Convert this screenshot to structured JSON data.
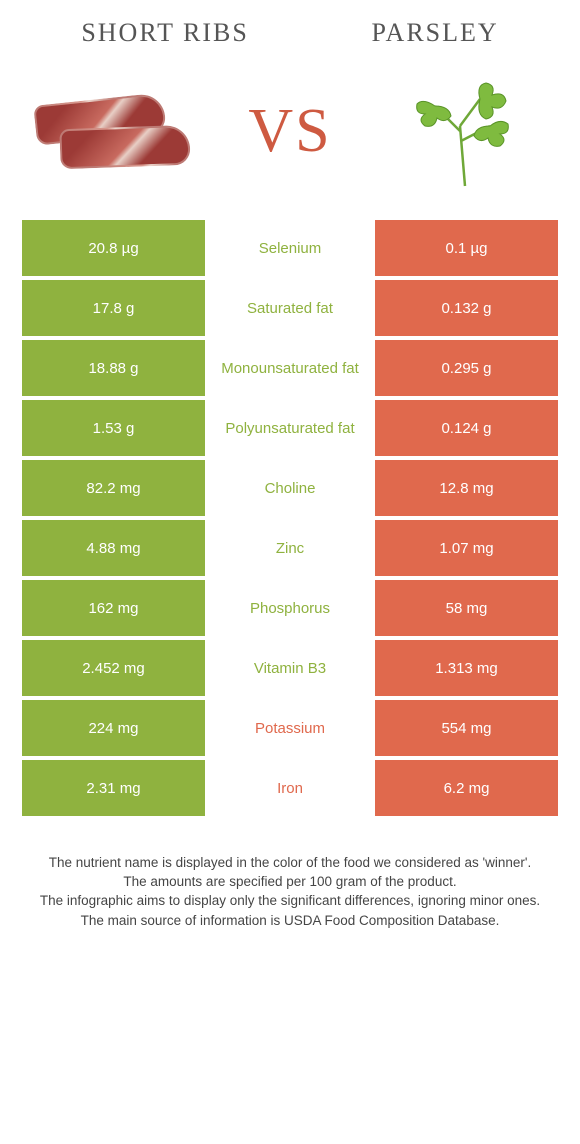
{
  "left_title": "Short ribs",
  "right_title": "Parsley",
  "vs_label": "VS",
  "colors": {
    "green": "#8fb23f",
    "orange": "#e0694d",
    "green_text": "#8fb23f",
    "orange_text": "#e0694d"
  },
  "table": {
    "left_bg": "#8fb23f",
    "right_bg": "#e0694d",
    "rows": [
      {
        "left": "20.8 µg",
        "nutrient": "Selenium",
        "right": "0.1 µg",
        "winner": "left"
      },
      {
        "left": "17.8 g",
        "nutrient": "Saturated fat",
        "right": "0.132 g",
        "winner": "left"
      },
      {
        "left": "18.88 g",
        "nutrient": "Monounsaturated fat",
        "right": "0.295 g",
        "winner": "left"
      },
      {
        "left": "1.53 g",
        "nutrient": "Polyunsaturated fat",
        "right": "0.124 g",
        "winner": "left"
      },
      {
        "left": "82.2 mg",
        "nutrient": "Choline",
        "right": "12.8 mg",
        "winner": "left"
      },
      {
        "left": "4.88 mg",
        "nutrient": "Zinc",
        "right": "1.07 mg",
        "winner": "left"
      },
      {
        "left": "162 mg",
        "nutrient": "Phosphorus",
        "right": "58 mg",
        "winner": "left"
      },
      {
        "left": "2.452 mg",
        "nutrient": "Vitamin B3",
        "right": "1.313 mg",
        "winner": "left"
      },
      {
        "left": "224 mg",
        "nutrient": "Potassium",
        "right": "554 mg",
        "winner": "right"
      },
      {
        "left": "2.31 mg",
        "nutrient": "Iron",
        "right": "6.2 mg",
        "winner": "right"
      }
    ]
  },
  "footer": {
    "line1": "The nutrient name is displayed in the color of the food we considered as 'winner'.",
    "line2": "The amounts are specified per 100 gram of the product.",
    "line3": "The infographic aims to display only the significant differences, ignoring minor ones.",
    "line4": "The main source of information is USDA Food Composition Database."
  }
}
